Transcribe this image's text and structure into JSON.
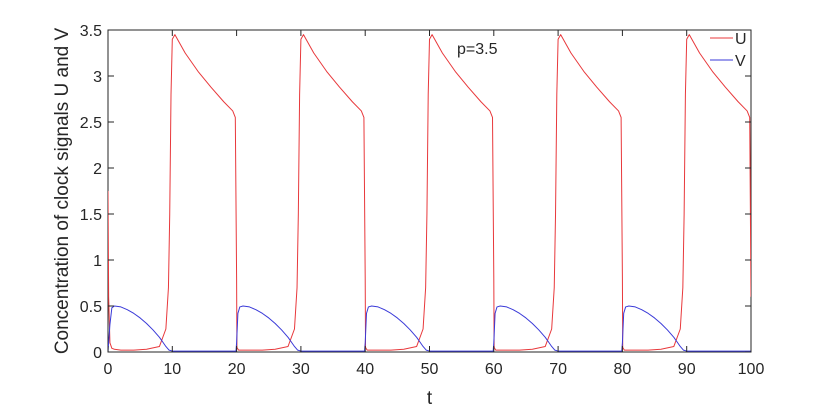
{
  "chart_data": {
    "type": "line",
    "title": "",
    "xlabel": "t",
    "ylabel": "Concentration of clock signals U and V",
    "xlim": [
      0,
      100
    ],
    "ylim": [
      0,
      3.5
    ],
    "x_ticks": [
      "0",
      "10",
      "20",
      "30",
      "40",
      "50",
      "60",
      "70",
      "80",
      "90",
      "100"
    ],
    "y_ticks": [
      "0",
      "0.5",
      "1",
      "1.5",
      "2",
      "2.5",
      "3",
      "3.5"
    ],
    "x_tick_values": [
      0,
      10,
      20,
      30,
      40,
      50,
      60,
      70,
      80,
      90,
      100
    ],
    "y_tick_values": [
      0,
      0.5,
      1,
      1.5,
      2,
      2.5,
      3,
      3.5
    ],
    "grid": false,
    "legend": "top-right",
    "annotation": "p=3.5",
    "series": [
      {
        "name": "U",
        "color": "#e8383b",
        "x": [
          0,
          0.1,
          0.3,
          0.6,
          1.0,
          2,
          4,
          6,
          8,
          9,
          9.4,
          9.6,
          9.8,
          10.0,
          10.4,
          12,
          14,
          16,
          18,
          19.4,
          19.8,
          20.0,
          20.05,
          20.3,
          20.6,
          22,
          24,
          26,
          28,
          29,
          29.4,
          29.6,
          29.8,
          30.0,
          30.4,
          32,
          34,
          36,
          38,
          39.4,
          39.8,
          40.0,
          40.05,
          40.3,
          40.6,
          42,
          44,
          46,
          48,
          49,
          49.4,
          49.6,
          49.8,
          50.0,
          50.4,
          52,
          54,
          56,
          58,
          59.4,
          59.8,
          60.0,
          60.05,
          60.3,
          60.6,
          62,
          64,
          66,
          68,
          69,
          69.4,
          69.6,
          69.8,
          70.0,
          70.4,
          72,
          74,
          76,
          78,
          79.4,
          79.8,
          80.0,
          80.05,
          80.3,
          80.6,
          82,
          84,
          86,
          88,
          89,
          89.4,
          89.6,
          89.8,
          90.0,
          90.4,
          92,
          94,
          96,
          98,
          99.4,
          99.8,
          100
        ],
        "values": [
          1.75,
          0.6,
          0.1,
          0.04,
          0.03,
          0.02,
          0.02,
          0.03,
          0.06,
          0.25,
          0.7,
          1.5,
          2.8,
          3.4,
          3.45,
          3.25,
          3.05,
          2.88,
          2.72,
          2.62,
          2.55,
          0.8,
          0.05,
          0.02,
          0.02,
          0.02,
          0.02,
          0.03,
          0.06,
          0.25,
          0.7,
          1.5,
          2.8,
          3.4,
          3.45,
          3.25,
          3.05,
          2.88,
          2.72,
          2.62,
          2.55,
          0.8,
          0.05,
          0.02,
          0.02,
          0.02,
          0.02,
          0.03,
          0.06,
          0.25,
          0.7,
          1.5,
          2.8,
          3.4,
          3.45,
          3.25,
          3.05,
          2.88,
          2.72,
          2.62,
          2.55,
          0.8,
          0.05,
          0.02,
          0.02,
          0.02,
          0.02,
          0.03,
          0.06,
          0.25,
          0.7,
          1.5,
          2.8,
          3.4,
          3.45,
          3.25,
          3.05,
          2.88,
          2.72,
          2.62,
          2.55,
          0.8,
          0.05,
          0.02,
          0.02,
          0.02,
          0.02,
          0.03,
          0.06,
          0.25,
          0.7,
          1.5,
          2.8,
          3.4,
          3.45,
          3.25,
          3.05,
          2.88,
          2.72,
          2.62,
          2.55,
          0.6
        ]
      },
      {
        "name": "V",
        "color": "#3a3ad8",
        "x": [
          0,
          0.3,
          0.6,
          1.0,
          2,
          3,
          4,
          5,
          6,
          7,
          8,
          8.5,
          9,
          9.5,
          10,
          19.9,
          20.0,
          20.2,
          20.5,
          21,
          22,
          23,
          24,
          25,
          26,
          27,
          28,
          28.5,
          29,
          29.5,
          30,
          39.9,
          40.0,
          40.2,
          40.5,
          41,
          42,
          43,
          44,
          45,
          46,
          47,
          48,
          48.5,
          49,
          49.5,
          50,
          59.9,
          60.0,
          60.2,
          60.5,
          61,
          62,
          63,
          64,
          65,
          66,
          67,
          68,
          68.5,
          69,
          69.5,
          70,
          79.9,
          80.0,
          80.2,
          80.5,
          81,
          82,
          83,
          84,
          85,
          86,
          87,
          88,
          88.5,
          89,
          89.5,
          90,
          100
        ],
        "values": [
          0,
          0.3,
          0.48,
          0.5,
          0.49,
          0.46,
          0.42,
          0.37,
          0.31,
          0.24,
          0.16,
          0.11,
          0.06,
          0.02,
          0.01,
          0.01,
          0.1,
          0.42,
          0.49,
          0.5,
          0.49,
          0.46,
          0.42,
          0.37,
          0.31,
          0.24,
          0.16,
          0.11,
          0.06,
          0.02,
          0.01,
          0.01,
          0.1,
          0.42,
          0.49,
          0.5,
          0.49,
          0.46,
          0.42,
          0.37,
          0.31,
          0.24,
          0.16,
          0.11,
          0.06,
          0.02,
          0.01,
          0.01,
          0.1,
          0.42,
          0.49,
          0.5,
          0.49,
          0.46,
          0.42,
          0.37,
          0.31,
          0.24,
          0.16,
          0.11,
          0.06,
          0.02,
          0.01,
          0.01,
          0.1,
          0.42,
          0.49,
          0.5,
          0.49,
          0.46,
          0.42,
          0.37,
          0.31,
          0.24,
          0.16,
          0.11,
          0.06,
          0.02,
          0.01,
          0.01
        ]
      }
    ]
  }
}
